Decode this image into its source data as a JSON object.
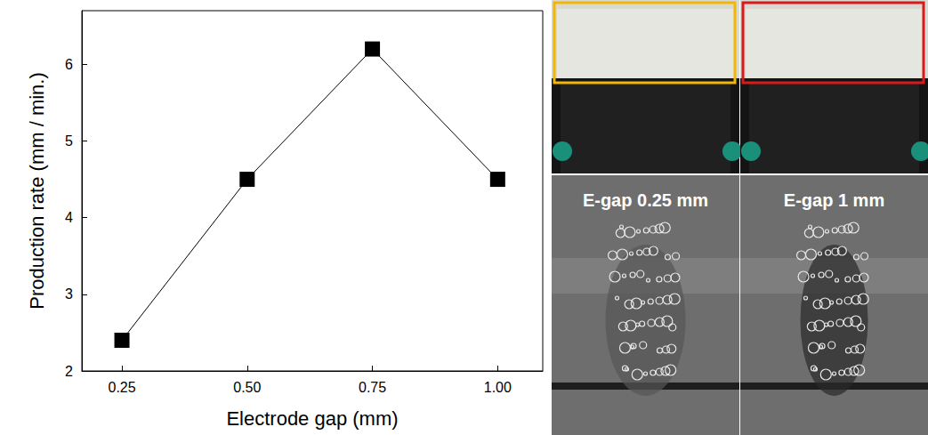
{
  "chart_data": {
    "type": "line",
    "x_label": "Electrode gap (mm)",
    "y_label": "Production rate (mm / min.)",
    "x": [
      0.25,
      0.5,
      0.75,
      1.0
    ],
    "values": [
      2.4,
      4.5,
      6.2,
      4.5
    ],
    "color": "#000000",
    "marker": "square",
    "line_style": "solid",
    "xlim": [
      0.17,
      1.09
    ],
    "xticks": [
      {
        "value": 0.25,
        "label": "0.25"
      },
      {
        "value": 0.5,
        "label": "0.50"
      },
      {
        "value": 0.75,
        "label": "0.75"
      },
      {
        "value": 1.0,
        "label": "1.00"
      }
    ],
    "ylim": [
      2,
      6.7
    ],
    "yticks": [
      2,
      3,
      4,
      5,
      6
    ],
    "grid": false
  },
  "photos": [
    {
      "caption": "E-gap 0.25 mm"
    },
    {
      "caption": "E-gap 1 mm"
    }
  ]
}
